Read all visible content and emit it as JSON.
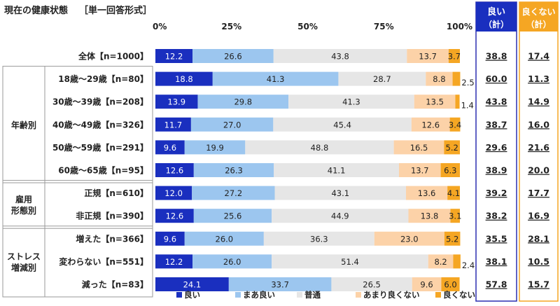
{
  "title": "現在の健康状態",
  "subtitle": "［単一回答形式］",
  "summary_headers": {
    "good": {
      "line1": "良い",
      "line2": "（計）",
      "color": "#1a2fbf"
    },
    "bad": {
      "line1": "良くない",
      "line2": "（計）",
      "color": "#f5a623"
    }
  },
  "groups": [
    {
      "label": [
        "年齢別"
      ],
      "row_start": 1,
      "row_end": 5
    },
    {
      "label": [
        "雇用",
        "形態別"
      ],
      "row_start": 6,
      "row_end": 7
    },
    {
      "label": [
        "ストレス",
        "増減別"
      ],
      "row_start": 8,
      "row_end": 10
    }
  ],
  "chart_data": {
    "type": "bar",
    "orientation": "horizontal",
    "stacked": true,
    "percent": true,
    "xlim": [
      0,
      100
    ],
    "x_ticks": [
      "0%",
      "25%",
      "50%",
      "75%",
      "100%"
    ],
    "legend_position": "bottom",
    "categories": [
      "全体【n=1000】",
      "18歳～29歳【n=80】",
      "30歳～39歳【n=208】",
      "40歳～49歳【n=326】",
      "50歳～59歳【n=291】",
      "60歳～65歳【n=95】",
      "正規【n=610】",
      "非正規【n=390】",
      "増えた【n=366】",
      "変わらない【n=551】",
      "減った【n=83】"
    ],
    "series": [
      {
        "name": "良い",
        "color": "#1a2fbf",
        "label_color": "#ffffff",
        "values": [
          12.2,
          18.8,
          13.9,
          11.7,
          9.6,
          12.6,
          12.0,
          12.6,
          9.6,
          12.2,
          24.1
        ]
      },
      {
        "name": "まあ良い",
        "color": "#9cc6ef",
        "label_color": "#222222",
        "values": [
          26.6,
          41.3,
          29.8,
          27.0,
          19.9,
          26.3,
          27.2,
          25.6,
          26.0,
          26.0,
          33.7
        ]
      },
      {
        "name": "普通",
        "color": "#e6e6e6",
        "label_color": "#222222",
        "values": [
          43.8,
          28.7,
          41.3,
          45.4,
          48.8,
          41.1,
          43.1,
          44.9,
          36.3,
          51.4,
          26.5
        ]
      },
      {
        "name": "あまり良くない",
        "color": "#fcd2a8",
        "label_color": "#222222",
        "values": [
          13.7,
          8.8,
          13.5,
          12.6,
          16.5,
          13.7,
          13.6,
          13.8,
          23.0,
          8.2,
          9.6
        ]
      },
      {
        "name": "良くない",
        "color": "#f5a623",
        "label_color": "#222222",
        "values": [
          3.7,
          2.5,
          1.4,
          3.4,
          5.2,
          6.3,
          4.1,
          3.1,
          5.2,
          2.4,
          6.0
        ]
      }
    ],
    "summary": {
      "good_total": [
        "38.8",
        "60.0",
        "43.8",
        "38.7",
        "29.6",
        "38.9",
        "39.2",
        "38.2",
        "35.5",
        "38.1",
        "57.8"
      ],
      "bad_total": [
        "17.4",
        "11.3",
        "14.9",
        "16.0",
        "21.6",
        "20.0",
        "17.7",
        "16.9",
        "28.1",
        "10.5",
        "15.7"
      ]
    }
  }
}
